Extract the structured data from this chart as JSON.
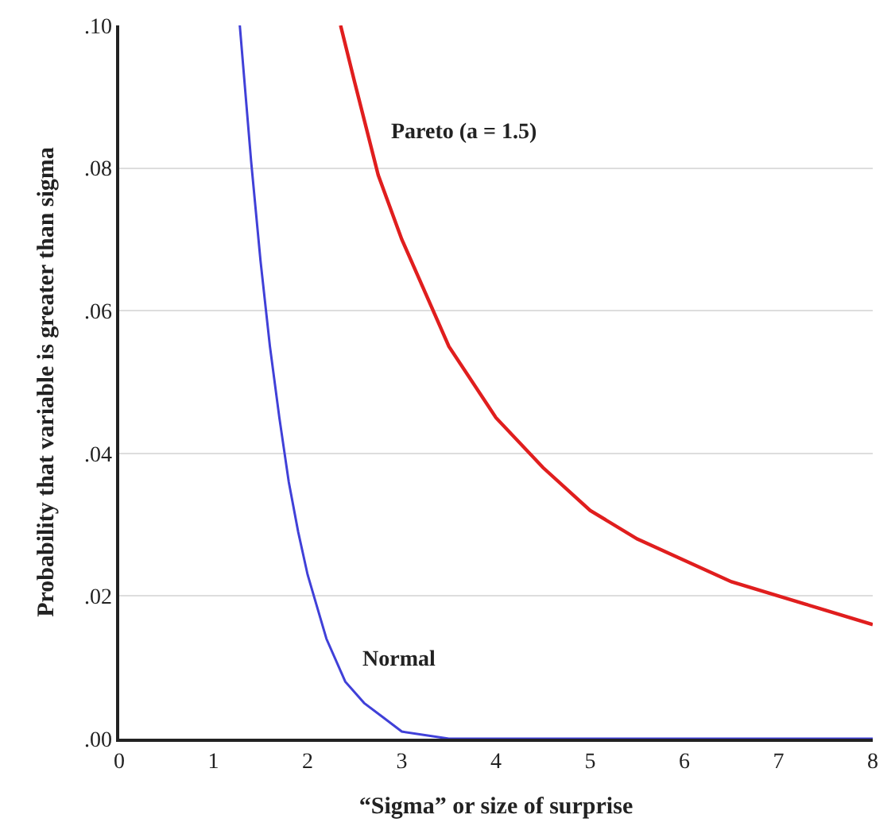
{
  "chart_data": {
    "type": "line",
    "xlabel": "“Sigma” or size of surprise",
    "ylabel": "Probability that variable is greater than sigma",
    "xlim": [
      0,
      8
    ],
    "xticks": [
      0,
      1,
      2,
      3,
      4,
      5,
      6,
      7,
      8
    ],
    "ylim": [
      0,
      0.1
    ],
    "yticks": [
      {
        "value": 0,
        "label": ".00"
      },
      {
        "value": 0.02,
        "label": ".02"
      },
      {
        "value": 0.04,
        "label": ".04"
      },
      {
        "value": 0.06,
        "label": ".06"
      },
      {
        "value": 0.08,
        "label": ".08"
      },
      {
        "value": 0.1,
        "label": ".10"
      }
    ],
    "grid": "y",
    "legend": false,
    "marker": "none",
    "line_style": "solid",
    "series": [
      {
        "name": "Normal",
        "color": "#4040d8",
        "x": [
          1.28,
          1.4,
          1.5,
          1.6,
          1.7,
          1.8,
          1.9,
          2.0,
          2.2,
          2.4,
          2.6,
          2.8,
          3.0,
          3.5,
          4.0,
          5.0,
          6.0,
          7.0,
          8.0
        ],
        "values": [
          0.1,
          0.081,
          0.067,
          0.055,
          0.045,
          0.036,
          0.029,
          0.023,
          0.014,
          0.008,
          0.005,
          0.003,
          0.001,
          0.0,
          0.0,
          0.0,
          0.0,
          0.0,
          0.0
        ]
      },
      {
        "name": "Pareto (a = 1.5)",
        "color": "#e01e1e",
        "x": [
          2.35,
          2.5,
          2.75,
          3.0,
          3.5,
          4.0,
          4.5,
          5.0,
          5.5,
          6.0,
          6.5,
          7.0,
          7.5,
          8.0
        ],
        "values": [
          0.1,
          0.092,
          0.079,
          0.07,
          0.055,
          0.045,
          0.038,
          0.032,
          0.028,
          0.025,
          0.022,
          0.02,
          0.018,
          0.016
        ]
      }
    ]
  }
}
